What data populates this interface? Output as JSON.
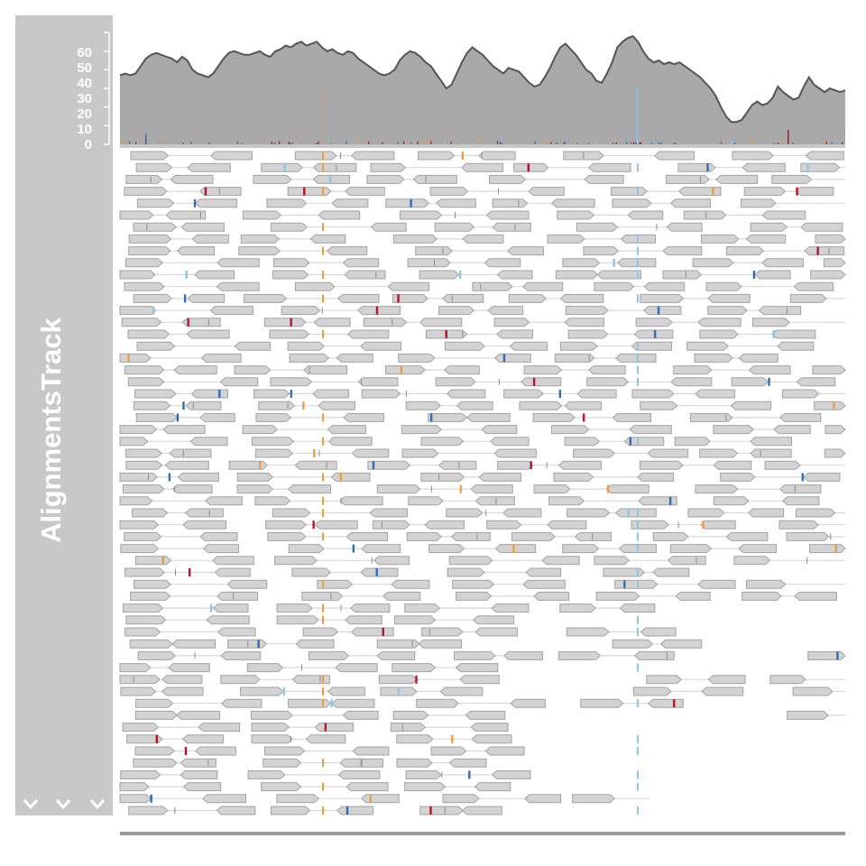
{
  "track": {
    "title": "AlignmentsTrack",
    "collapse_icons": [
      "chevron-down-icon",
      "chevron-down-icon",
      "chevron-down-icon"
    ]
  },
  "coverage": {
    "axis_ticks": [
      "0",
      "10",
      "20",
      "30",
      "40",
      "50",
      "60"
    ],
    "ylim": [
      0,
      60
    ],
    "fill_color": "#a9a9a9",
    "line_color": "#555555",
    "profile": [
      37,
      38,
      37,
      38,
      42,
      46,
      48,
      49,
      48,
      47,
      46,
      44,
      47,
      45,
      40,
      38,
      37,
      36,
      38,
      42,
      46,
      49,
      50,
      49,
      48,
      48,
      49,
      50,
      48,
      47,
      50,
      51,
      53,
      52,
      54,
      55,
      53,
      54,
      55,
      52,
      50,
      51,
      49,
      48,
      50,
      49,
      46,
      44,
      42,
      40,
      38,
      37,
      38,
      40,
      45,
      48,
      50,
      49,
      47,
      44,
      42,
      38,
      34,
      30,
      32,
      38,
      44,
      49,
      52,
      50,
      48,
      45,
      42,
      40,
      38,
      41,
      40,
      39,
      36,
      33,
      31,
      32,
      36,
      41,
      47,
      52,
      54,
      51,
      48,
      44,
      40,
      38,
      34,
      33,
      38,
      44,
      52,
      55,
      57,
      58,
      55,
      50,
      46,
      44,
      45,
      43,
      44,
      43,
      44,
      42,
      40,
      38,
      36,
      33,
      30,
      26,
      20,
      15,
      12,
      12,
      13,
      17,
      21,
      23,
      21,
      22,
      25,
      31,
      28,
      26,
      24,
      25,
      31,
      36,
      32,
      30,
      28,
      30,
      29,
      28,
      29
    ]
  },
  "colors": {
    "read_fill": "#d3d3d3",
    "read_border": "#a3a3a3",
    "mismatch_A": "#2f6db5",
    "mismatch_C": "#f09e3b",
    "mismatch_G": "#b8132b",
    "mismatch_T": "#8ec6e4"
  }
}
